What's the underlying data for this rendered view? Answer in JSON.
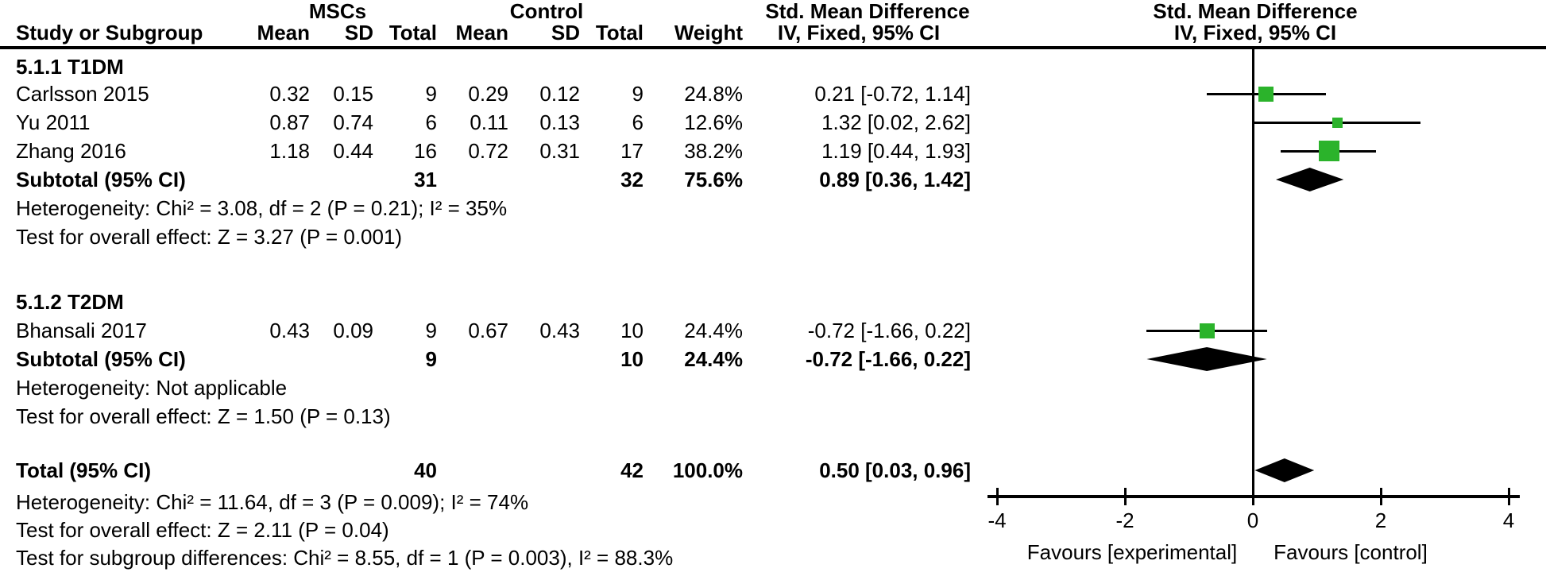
{
  "header": {
    "group1": "MSCs",
    "group2": "Control",
    "col_study": "Study or Subgroup",
    "col_mean": "Mean",
    "col_sd": "SD",
    "col_total": "Total",
    "col_weight": "Weight",
    "smd": "Std. Mean Difference",
    "method": "IV, Fixed, 95% CI"
  },
  "colors": {
    "marker_green": "#2BB32B",
    "line_black": "#000000"
  },
  "chart_data": {
    "type": "forest",
    "x_axis": {
      "min": -4,
      "max": 4,
      "ticks": [
        "-4",
        "-2",
        "0",
        "2",
        "4"
      ],
      "tick_values": [
        -4,
        -2,
        0,
        2,
        4
      ]
    },
    "favours_left": "Favours [experimental]",
    "favours_right": "Favours [control]",
    "groups": [
      {
        "label": "5.1.1 T1DM",
        "studies": [
          {
            "name": "Carlsson 2015",
            "mean1": "0.32",
            "sd1": "0.15",
            "total1": "9",
            "mean2": "0.29",
            "sd2": "0.12",
            "total2": "9",
            "weight": "24.8%",
            "ci_text": "0.21 [-0.72, 1.14]",
            "smd": 0.21,
            "lo": -0.72,
            "hi": 1.14,
            "weight_pct": 24.8
          },
          {
            "name": "Yu 2011",
            "mean1": "0.87",
            "sd1": "0.74",
            "total1": "6",
            "mean2": "0.11",
            "sd2": "0.13",
            "total2": "6",
            "weight": "12.6%",
            "ci_text": "1.32 [0.02, 2.62]",
            "smd": 1.32,
            "lo": 0.02,
            "hi": 2.62,
            "weight_pct": 12.6
          },
          {
            "name": "Zhang 2016",
            "mean1": "1.18",
            "sd1": "0.44",
            "total1": "16",
            "mean2": "0.72",
            "sd2": "0.31",
            "total2": "17",
            "weight": "38.2%",
            "ci_text": "1.19 [0.44, 1.93]",
            "smd": 1.19,
            "lo": 0.44,
            "hi": 1.93,
            "weight_pct": 38.2
          }
        ],
        "subtotal": {
          "label": "Subtotal (95% CI)",
          "total1": "31",
          "total2": "32",
          "weight": "75.6%",
          "ci_text": "0.89 [0.36, 1.42]",
          "smd": 0.89,
          "lo": 0.36,
          "hi": 1.42
        },
        "heterogeneity": "Heterogeneity: Chi² = 3.08, df = 2 (P = 0.21); I² = 35%",
        "overall_effect": "Test for overall effect: Z = 3.27 (P = 0.001)"
      },
      {
        "label": "5.1.2 T2DM",
        "studies": [
          {
            "name": "Bhansali 2017",
            "mean1": "0.43",
            "sd1": "0.09",
            "total1": "9",
            "mean2": "0.67",
            "sd2": "0.43",
            "total2": "10",
            "weight": "24.4%",
            "ci_text": "-0.72 [-1.66, 0.22]",
            "smd": -0.72,
            "lo": -1.66,
            "hi": 0.22,
            "weight_pct": 24.4
          }
        ],
        "subtotal": {
          "label": "Subtotal (95% CI)",
          "total1": "9",
          "total2": "10",
          "weight": "24.4%",
          "ci_text": "-0.72 [-1.66, 0.22]",
          "smd": -0.72,
          "lo": -1.66,
          "hi": 0.22
        },
        "heterogeneity": "Heterogeneity: Not applicable",
        "overall_effect": "Test for overall effect: Z = 1.50 (P = 0.13)"
      }
    ],
    "total": {
      "label": "Total (95% CI)",
      "total1": "40",
      "total2": "42",
      "weight": "100.0%",
      "ci_text": "0.50 [0.03, 0.96]",
      "smd": 0.5,
      "lo": 0.03,
      "hi": 0.96
    },
    "footer": [
      "Heterogeneity: Chi² = 11.64, df = 3 (P = 0.009); I² = 74%",
      "Test for overall effect: Z = 2.11 (P = 0.04)",
      "Test for subgroup differences: Chi² = 8.55, df = 1 (P = 0.003), I² = 88.3%"
    ]
  }
}
